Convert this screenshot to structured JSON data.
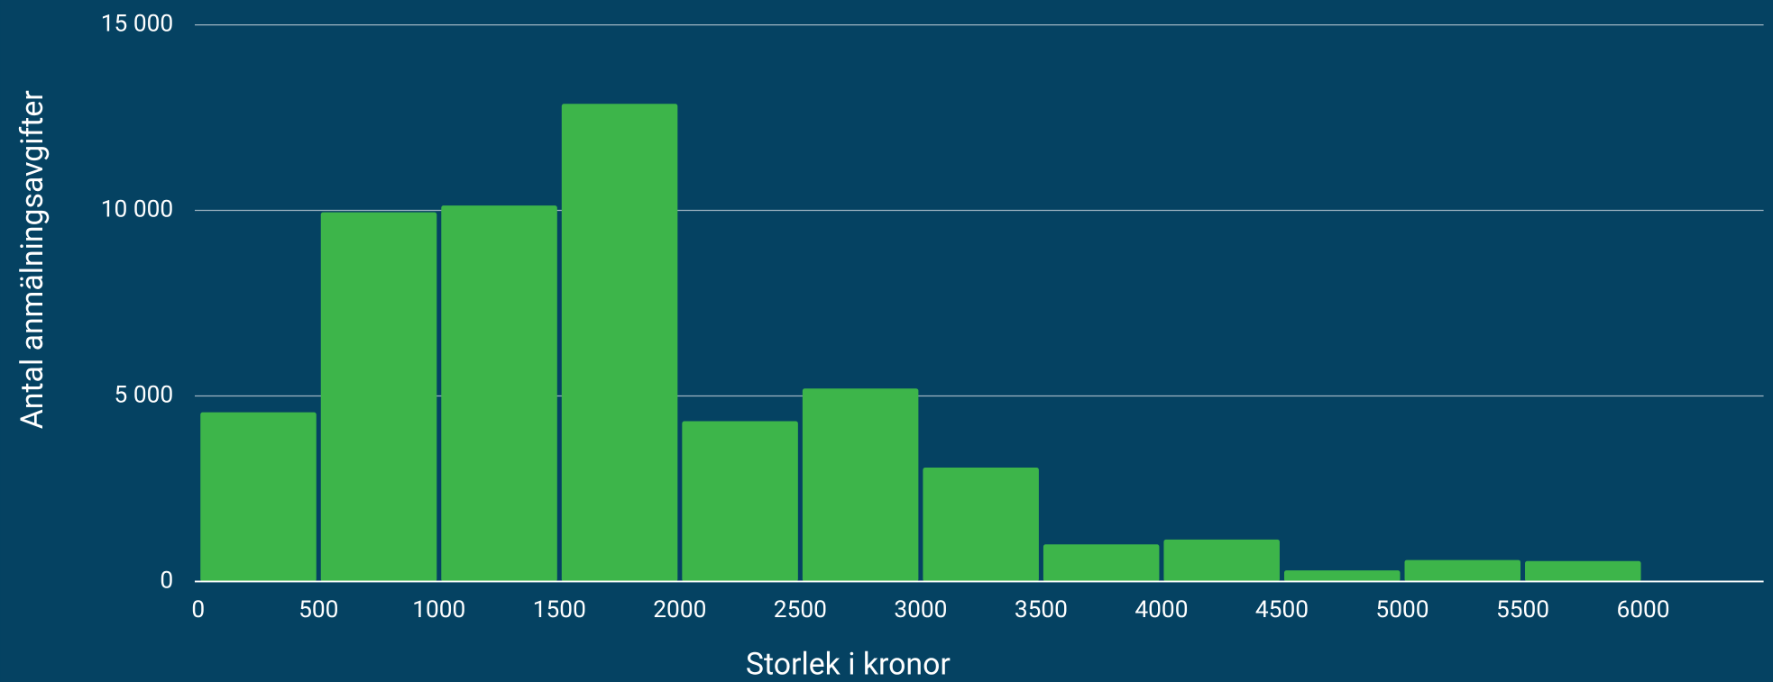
{
  "chart_data": {
    "type": "histogram",
    "xlabel": "Storlek i kronor",
    "ylabel": "Antal anmälningsavgifter",
    "bins": [
      0,
      500,
      1000,
      1500,
      2000,
      2500,
      3000,
      3500,
      4000,
      4500,
      5000,
      5500,
      6000
    ],
    "values": [
      4560,
      9950,
      10130,
      12870,
      4320,
      5200,
      3070,
      1000,
      1130,
      300,
      580,
      550
    ],
    "color": "#3db54a",
    "xlim": [
      0,
      6500
    ],
    "xticks": [
      0,
      500,
      1000,
      1500,
      2000,
      2500,
      3000,
      3500,
      4000,
      4500,
      5000,
      5500,
      6000
    ],
    "ylim": [
      0,
      15000
    ],
    "yticks": [
      {
        "value": 0,
        "label": "0"
      },
      {
        "value": 5000,
        "label": "5 000"
      },
      {
        "value": 10000,
        "label": "10 000"
      },
      {
        "value": 15000,
        "label": "15 000"
      }
    ],
    "grid": true
  }
}
